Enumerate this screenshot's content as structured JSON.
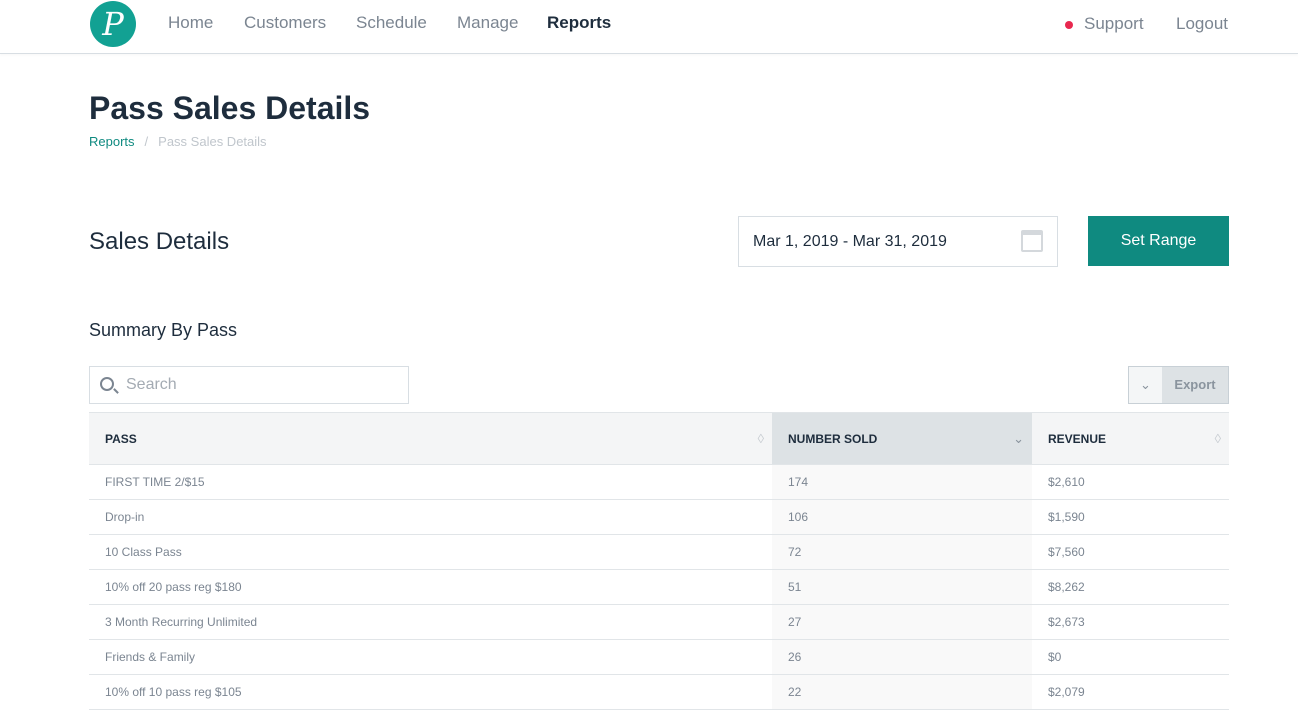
{
  "nav": {
    "logo": "P",
    "items": [
      "Home",
      "Customers",
      "Schedule",
      "Manage",
      "Reports"
    ],
    "active": "Reports",
    "support": "Support",
    "logout": "Logout",
    "support_dot_color": "#e8284f"
  },
  "page": {
    "title": "Pass Sales Details",
    "breadcrumb": [
      "Reports",
      "Pass Sales Details"
    ],
    "breadcrumb_sep": "/"
  },
  "section": {
    "title": "Sales Details",
    "date_range": "Mar 1, 2019 - Mar 31, 2019",
    "set_range": "Set Range"
  },
  "summary": {
    "title": "Summary By Pass",
    "search_placeholder": "Search",
    "export": "Export",
    "columns": [
      "PASS",
      "NUMBER SOLD",
      "REVENUE"
    ],
    "sorted_column": "NUMBER SOLD",
    "rows": [
      [
        "FIRST TIME 2/$15",
        "174",
        "$2,610"
      ],
      [
        "Drop-in",
        "106",
        "$1,590"
      ],
      [
        "10 Class Pass",
        "72",
        "$7,560"
      ],
      [
        "10% off 20 pass reg $180",
        "51",
        "$8,262"
      ],
      [
        "3 Month Recurring Unlimited",
        "27",
        "$2,673"
      ],
      [
        "Friends & Family",
        "26",
        "$0"
      ],
      [
        "10% off 10 pass reg $105",
        "22",
        "$2,079"
      ]
    ]
  },
  "colors": {
    "accent": "#0f8a80",
    "logo": "#12a193"
  }
}
